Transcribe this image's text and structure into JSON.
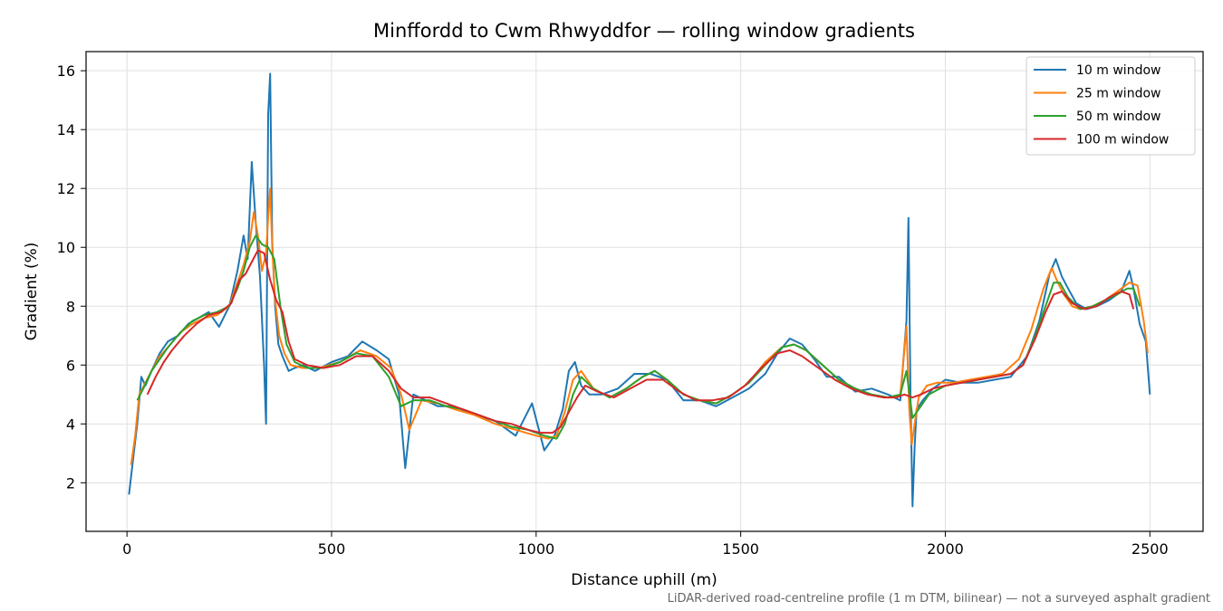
{
  "chart_data": {
    "type": "line",
    "title": "Minffordd to Cwm Rhwyddfor — rolling window gradients",
    "xlabel": "Distance uphill (m)",
    "ylabel": "Gradient (%)",
    "footnote": "LiDAR-derived road-centreline profile (1 m DTM, bilinear) — not a surveyed asphalt gradient",
    "xlim": [
      -100,
      2630
    ],
    "ylim": [
      0.35,
      16.65
    ],
    "xticks": [
      0,
      500,
      1000,
      1500,
      2000,
      2500
    ],
    "yticks": [
      2,
      4,
      6,
      8,
      10,
      12,
      14,
      16
    ],
    "grid": true,
    "legend_position": "top-right",
    "series": [
      {
        "name": "10 m window",
        "color": "#1f77b4",
        "x": [
          5,
          15,
          25,
          35,
          45,
          60,
          80,
          100,
          125,
          150,
          175,
          200,
          225,
          250,
          270,
          285,
          295,
          305,
          315,
          325,
          335,
          340,
          345,
          350,
          355,
          362,
          370,
          380,
          395,
          410,
          430,
          460,
          500,
          540,
          575,
          610,
          640,
          665,
          680,
          700,
          730,
          760,
          800,
          850,
          900,
          950,
          990,
          1020,
          1045,
          1065,
          1080,
          1095,
          1110,
          1130,
          1160,
          1200,
          1240,
          1280,
          1320,
          1360,
          1400,
          1440,
          1480,
          1520,
          1560,
          1590,
          1620,
          1650,
          1680,
          1710,
          1740,
          1780,
          1820,
          1860,
          1890,
          1905,
          1910,
          1915,
          1920,
          1925,
          1930,
          1945,
          1970,
          2000,
          2040,
          2080,
          2120,
          2160,
          2200,
          2230,
          2255,
          2270,
          2285,
          2300,
          2320,
          2345,
          2370,
          2400,
          2430,
          2450,
          2460,
          2475,
          2490,
          2500
        ],
        "y": [
          1.6,
          2.8,
          4.0,
          5.6,
          5.3,
          5.8,
          6.4,
          6.8,
          7.0,
          7.4,
          7.6,
          7.8,
          7.3,
          8.0,
          9.2,
          10.4,
          9.6,
          12.9,
          10.8,
          9.0,
          6.0,
          4.0,
          14.5,
          15.9,
          10.2,
          8.0,
          6.7,
          6.3,
          5.8,
          5.9,
          6.0,
          5.8,
          6.1,
          6.3,
          6.8,
          6.5,
          6.2,
          5.0,
          2.5,
          5.0,
          4.8,
          4.6,
          4.6,
          4.3,
          4.1,
          3.6,
          4.7,
          3.1,
          3.6,
          4.5,
          5.8,
          6.1,
          5.3,
          5.0,
          5.0,
          5.2,
          5.7,
          5.7,
          5.5,
          4.8,
          4.8,
          4.6,
          4.9,
          5.2,
          5.7,
          6.4,
          6.9,
          6.7,
          6.2,
          5.6,
          5.6,
          5.1,
          5.2,
          5.0,
          4.8,
          7.5,
          11.0,
          4.8,
          1.2,
          3.2,
          4.5,
          4.8,
          5.2,
          5.5,
          5.4,
          5.4,
          5.5,
          5.6,
          6.3,
          7.5,
          9.1,
          9.6,
          9.0,
          8.6,
          8.1,
          7.9,
          8.0,
          8.2,
          8.5,
          9.2,
          8.6,
          7.4,
          6.8,
          5.0
        ]
      },
      {
        "name": "25 m window",
        "color": "#ff7f0e",
        "x": [
          10,
          20,
          30,
          45,
          60,
          80,
          100,
          130,
          160,
          190,
          220,
          250,
          270,
          285,
          300,
          310,
          320,
          330,
          340,
          345,
          350,
          355,
          362,
          372,
          385,
          400,
          430,
          470,
          520,
          570,
          610,
          645,
          670,
          690,
          720,
          760,
          800,
          850,
          900,
          950,
          1000,
          1030,
          1050,
          1070,
          1090,
          1110,
          1140,
          1180,
          1220,
          1260,
          1290,
          1320,
          1360,
          1400,
          1440,
          1480,
          1520,
          1560,
          1600,
          1630,
          1660,
          1700,
          1740,
          1780,
          1820,
          1860,
          1890,
          1905,
          1912,
          1918,
          1925,
          1935,
          1955,
          1980,
          2020,
          2060,
          2100,
          2140,
          2180,
          2210,
          2240,
          2260,
          2275,
          2290,
          2310,
          2330,
          2360,
          2390,
          2420,
          2450,
          2470,
          2485,
          2495
        ],
        "y": [
          2.6,
          3.6,
          5.0,
          5.4,
          5.8,
          6.3,
          6.6,
          7.1,
          7.4,
          7.6,
          7.7,
          8.0,
          8.8,
          9.4,
          10.2,
          11.2,
          10.4,
          9.2,
          9.8,
          11.0,
          12.0,
          10.0,
          8.2,
          7.0,
          6.4,
          6.0,
          5.9,
          5.9,
          6.1,
          6.5,
          6.3,
          5.9,
          5.0,
          3.8,
          4.8,
          4.7,
          4.5,
          4.3,
          4.0,
          3.8,
          3.6,
          3.5,
          3.6,
          4.4,
          5.5,
          5.8,
          5.2,
          4.9,
          5.2,
          5.6,
          5.8,
          5.5,
          5.0,
          4.8,
          4.7,
          5.0,
          5.4,
          6.1,
          6.6,
          6.7,
          6.5,
          6.0,
          5.5,
          5.2,
          5.0,
          4.9,
          5.0,
          7.3,
          4.5,
          3.3,
          4.0,
          4.9,
          5.3,
          5.4,
          5.4,
          5.5,
          5.6,
          5.7,
          6.2,
          7.2,
          8.6,
          9.3,
          8.8,
          8.4,
          8.0,
          7.9,
          8.0,
          8.2,
          8.5,
          8.8,
          8.7,
          7.5,
          6.4
        ]
      },
      {
        "name": "50 m window",
        "color": "#2ca02c",
        "x": [
          25,
          40,
          60,
          80,
          100,
          130,
          160,
          190,
          220,
          250,
          270,
          285,
          300,
          315,
          330,
          345,
          360,
          375,
          390,
          410,
          440,
          480,
          520,
          560,
          600,
          640,
          670,
          700,
          740,
          780,
          820,
          860,
          900,
          940,
          980,
          1020,
          1050,
          1070,
          1090,
          1110,
          1140,
          1180,
          1220,
          1260,
          1290,
          1320,
          1360,
          1400,
          1440,
          1480,
          1520,
          1560,
          1600,
          1630,
          1660,
          1700,
          1740,
          1780,
          1820,
          1860,
          1890,
          1905,
          1920,
          1935,
          1960,
          2000,
          2040,
          2080,
          2120,
          2160,
          2190,
          2220,
          2245,
          2265,
          2280,
          2300,
          2330,
          2360,
          2390,
          2420,
          2445,
          2460,
          2475
        ],
        "y": [
          4.8,
          5.2,
          5.8,
          6.2,
          6.6,
          7.1,
          7.5,
          7.7,
          7.8,
          8.0,
          8.6,
          9.2,
          10.0,
          10.4,
          10.1,
          10.0,
          9.6,
          8.0,
          6.7,
          6.1,
          5.9,
          5.9,
          6.1,
          6.4,
          6.3,
          5.6,
          4.6,
          4.8,
          4.8,
          4.6,
          4.5,
          4.3,
          4.1,
          3.9,
          3.8,
          3.6,
          3.5,
          4.0,
          5.0,
          5.6,
          5.2,
          4.9,
          5.2,
          5.6,
          5.8,
          5.5,
          5.0,
          4.8,
          4.7,
          5.0,
          5.4,
          6.0,
          6.6,
          6.7,
          6.5,
          6.0,
          5.5,
          5.2,
          5.0,
          4.9,
          5.0,
          5.8,
          4.2,
          4.5,
          5.0,
          5.3,
          5.4,
          5.5,
          5.6,
          5.7,
          6.0,
          7.0,
          8.0,
          8.8,
          8.8,
          8.3,
          7.9,
          8.0,
          8.2,
          8.4,
          8.6,
          8.6,
          8.0
        ]
      },
      {
        "name": "100 m window",
        "color": "#d62728",
        "x": [
          50,
          70,
          90,
          110,
          140,
          170,
          200,
          230,
          255,
          275,
          290,
          305,
          320,
          335,
          350,
          365,
          380,
          395,
          410,
          440,
          480,
          520,
          560,
          600,
          640,
          670,
          700,
          740,
          780,
          820,
          860,
          900,
          940,
          980,
          1010,
          1040,
          1060,
          1080,
          1100,
          1120,
          1150,
          1190,
          1230,
          1270,
          1310,
          1350,
          1390,
          1430,
          1470,
          1510,
          1550,
          1590,
          1620,
          1650,
          1690,
          1730,
          1770,
          1810,
          1850,
          1880,
          1900,
          1920,
          1940,
          1970,
          2000,
          2040,
          2080,
          2120,
          2160,
          2190,
          2220,
          2245,
          2265,
          2285,
          2310,
          2340,
          2370,
          2400,
          2430,
          2450,
          2460
        ],
        "y": [
          5.0,
          5.6,
          6.1,
          6.5,
          7.0,
          7.4,
          7.7,
          7.8,
          8.1,
          8.9,
          9.1,
          9.5,
          9.9,
          9.8,
          8.9,
          8.2,
          7.8,
          6.8,
          6.2,
          6.0,
          5.9,
          6.0,
          6.3,
          6.3,
          5.8,
          5.2,
          4.9,
          4.9,
          4.7,
          4.5,
          4.3,
          4.1,
          4.0,
          3.8,
          3.7,
          3.7,
          3.9,
          4.4,
          4.9,
          5.3,
          5.1,
          4.9,
          5.2,
          5.5,
          5.5,
          5.1,
          4.8,
          4.8,
          4.9,
          5.3,
          5.9,
          6.4,
          6.5,
          6.3,
          5.9,
          5.5,
          5.2,
          5.0,
          4.9,
          4.9,
          5.0,
          4.9,
          5.0,
          5.2,
          5.3,
          5.4,
          5.5,
          5.6,
          5.7,
          6.0,
          6.9,
          7.8,
          8.4,
          8.5,
          8.1,
          7.9,
          8.0,
          8.3,
          8.5,
          8.4,
          7.9
        ]
      }
    ]
  }
}
